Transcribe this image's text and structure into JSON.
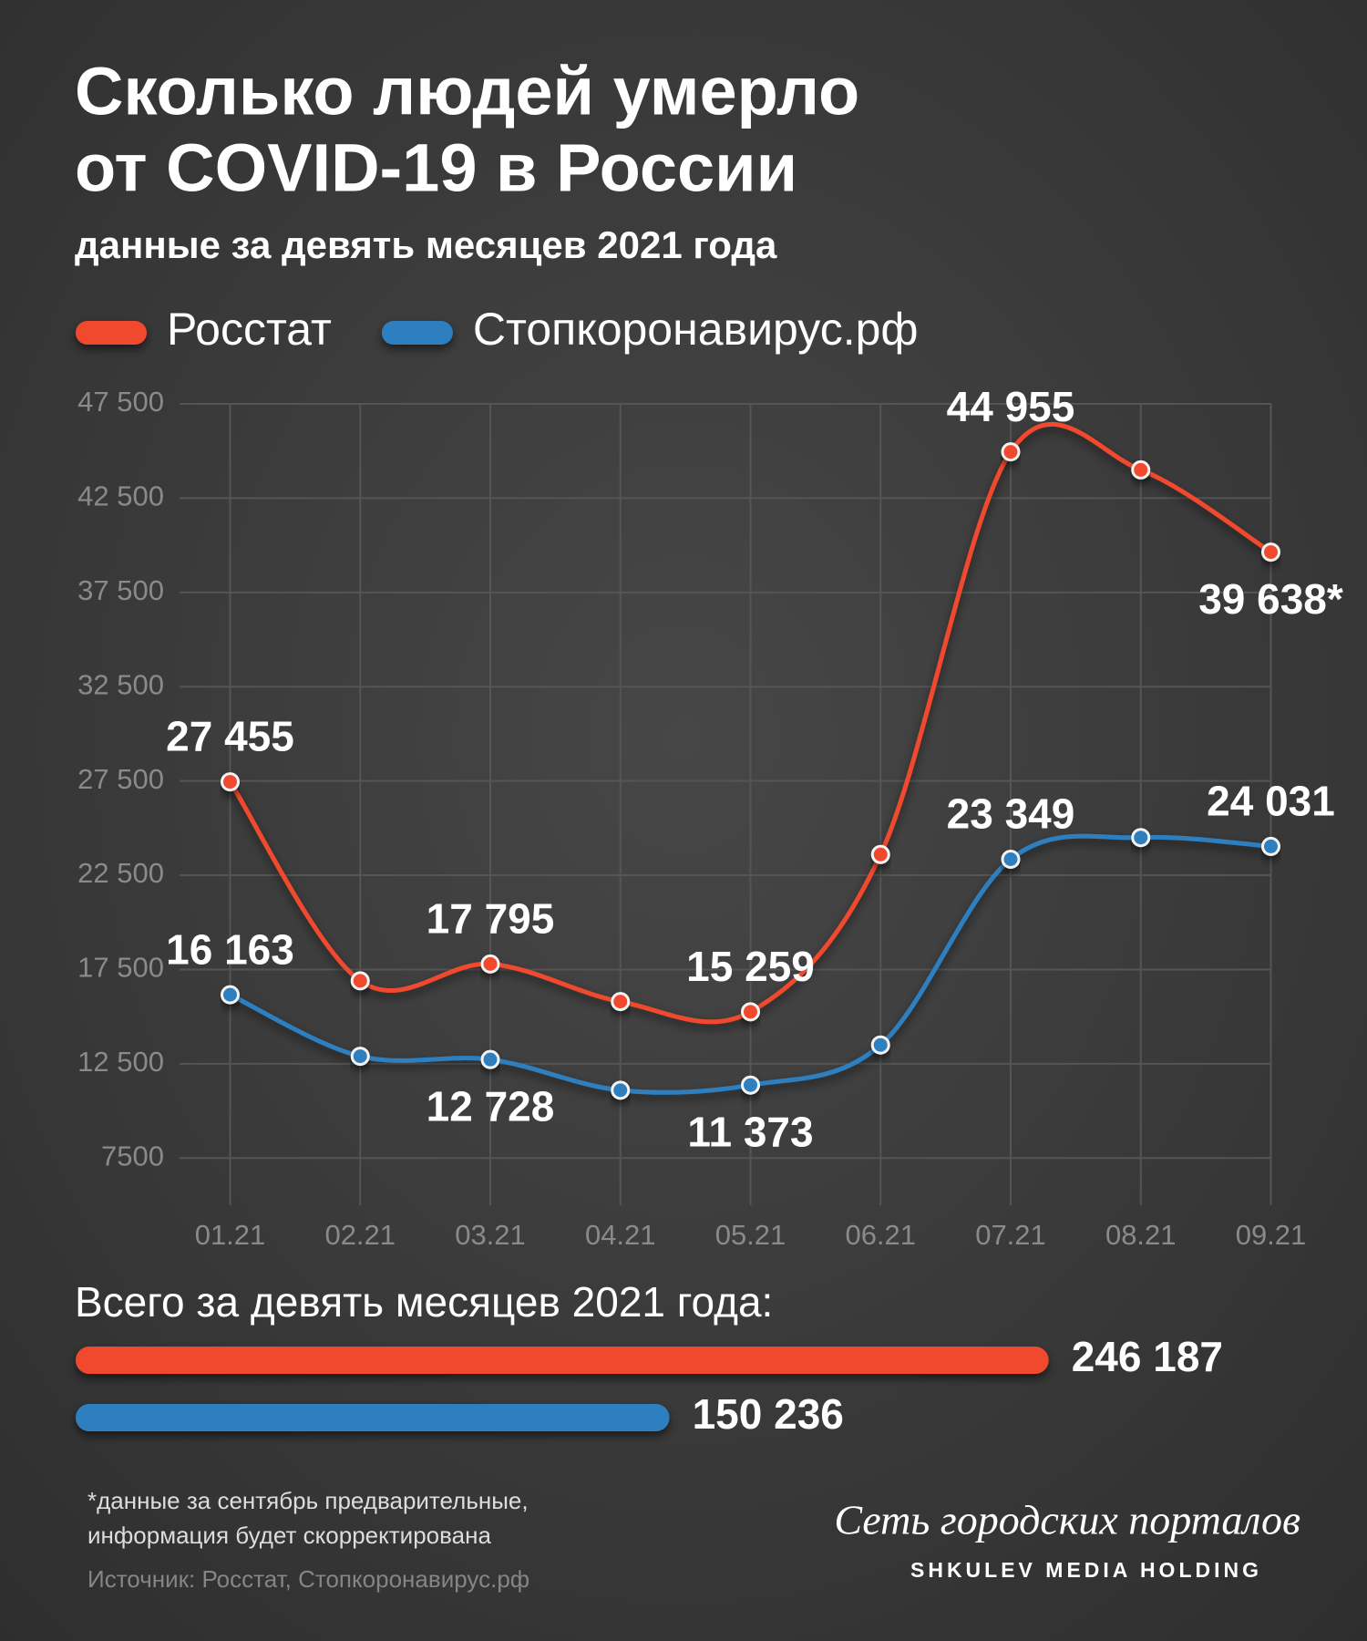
{
  "chart_data": [
    {
      "type": "line",
      "title": [
        "Сколько людей умерло",
        "от COVID-19 в России"
      ],
      "subtitle": "данные за девять месяцев 2021 года",
      "categories": [
        "01.21",
        "02.21",
        "03.21",
        "04.21",
        "05.21",
        "06.21",
        "07.21",
        "08.21",
        "09.21"
      ],
      "series": [
        {
          "name": "Росстат",
          "color": "#f04a2e",
          "values": [
            27455,
            16900,
            17795,
            15800,
            15259,
            23600,
            44955,
            44000,
            39638
          ],
          "value_labels": [
            "27 455",
            null,
            "17 795",
            null,
            "15 259",
            null,
            "44 955",
            null,
            "39 638*"
          ]
        },
        {
          "name": "Стопкоронавирус.рф",
          "color": "#2f7fc0",
          "values": [
            16163,
            12900,
            12728,
            11100,
            11373,
            13500,
            23349,
            24500,
            24031
          ],
          "value_labels": [
            "16 163",
            null,
            "12 728",
            null,
            "11 373",
            null,
            "23 349",
            null,
            "24 031"
          ]
        }
      ],
      "ylim": [
        5000,
        47500
      ],
      "yticks": [
        7500,
        {
          "value": 12500,
          "label": "12 500"
        },
        {
          "value": 17500,
          "label": "17 500"
        },
        {
          "value": 22500,
          "label": "22 500"
        },
        {
          "value": 27500,
          "label": "27 500"
        },
        {
          "value": 32500,
          "label": "32 500"
        },
        {
          "value": 37500,
          "label": "37 500"
        },
        {
          "value": 42500,
          "label": "42 500"
        },
        {
          "value": 47500,
          "label": "47 500"
        }
      ],
      "grid": true
    },
    {
      "type": "hbar",
      "title": "Всего за девять месяцев 2021 года:",
      "values": [
        246187,
        150236
      ],
      "value_labels": [
        "246 187",
        "150 236"
      ],
      "colors": [
        "#f04a2e",
        "#2f7fc0"
      ],
      "xlim": [
        0,
        270000
      ]
    }
  ],
  "footer": {
    "note": [
      "*данные за сентябрь предварительные,",
      "информация будет скорректирована"
    ],
    "source": "Источник: Росстат, Стопкоронавирус.рф",
    "brand": "Сеть городских порталов",
    "holding": "SHKULEV MEDIA HOLDING"
  }
}
